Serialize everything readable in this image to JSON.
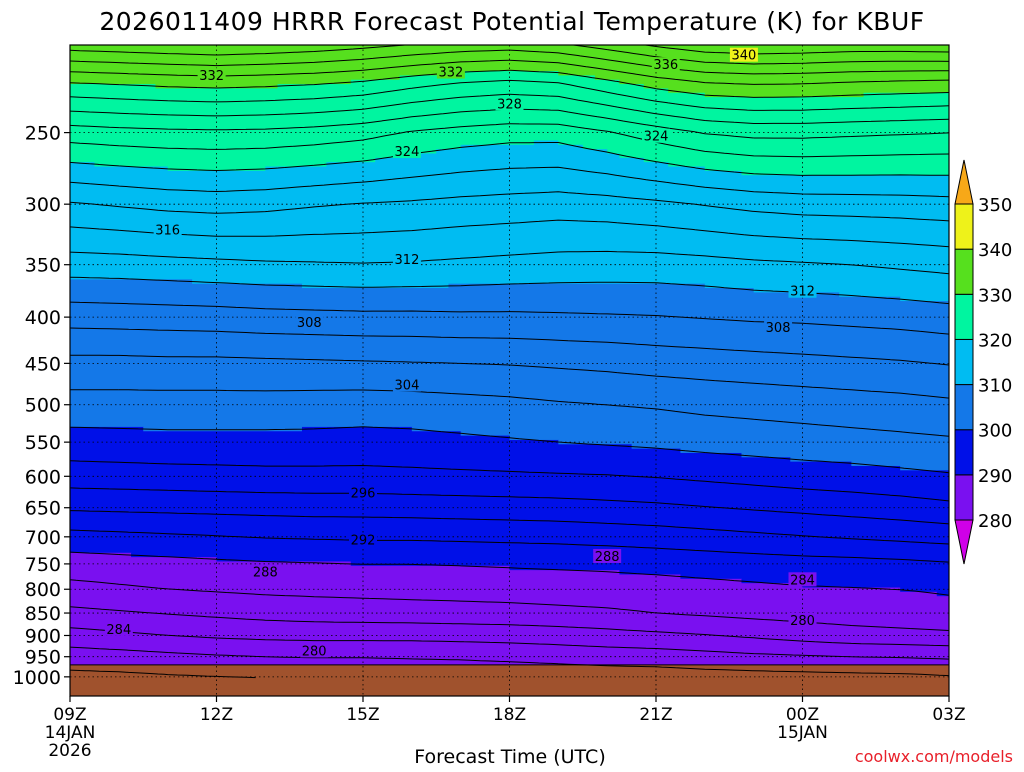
{
  "chart_data": {
    "type": "heatmap",
    "title": "2026011409 HRRR Forecast Potential Temperature (K) for KBUF",
    "xlabel": "Forecast Time (UTC)",
    "ylabel": "",
    "x_ticks": [
      {
        "hour": 0,
        "label": "09Z",
        "sub1": "14JAN",
        "sub2": "2026"
      },
      {
        "hour": 3,
        "label": "12Z",
        "sub1": "",
        "sub2": ""
      },
      {
        "hour": 6,
        "label": "15Z",
        "sub1": "",
        "sub2": ""
      },
      {
        "hour": 9,
        "label": "18Z",
        "sub1": "",
        "sub2": ""
      },
      {
        "hour": 12,
        "label": "21Z",
        "sub1": "",
        "sub2": ""
      },
      {
        "hour": 15,
        "label": "00Z",
        "sub1": "15JAN",
        "sub2": ""
      },
      {
        "hour": 18,
        "label": "03Z",
        "sub1": "",
        "sub2": ""
      }
    ],
    "xlim": [
      0,
      18
    ],
    "y_ticks": [
      250,
      300,
      350,
      400,
      450,
      500,
      550,
      600,
      650,
      700,
      750,
      800,
      850,
      900,
      950,
      1000
    ],
    "ylim": [
      1050,
      200
    ],
    "y_scale": "log-pressure",
    "grid": "dotted",
    "terrain_pressure": 970,
    "terrain_color": "#a0522d",
    "legend": {
      "position": "right",
      "levels": [
        280,
        290,
        300,
        310,
        320,
        330,
        340,
        350
      ],
      "colors": [
        "#d000e8",
        "#7a10f0",
        "#0010e8",
        "#1478e8",
        "#00bcf2",
        "#00f5a0",
        "#56e01e",
        "#eef21a",
        "#f7a818"
      ]
    },
    "contour_interval": 2,
    "contours_labeled": [
      {
        "value": 340,
        "hour": 13.8,
        "pressure": 205
      },
      {
        "value": 336,
        "hour": 12.2,
        "pressure": 210
      },
      {
        "value": 332,
        "hour": 2.9,
        "pressure": 216
      },
      {
        "value": 332,
        "hour": 7.8,
        "pressure": 214
      },
      {
        "value": 328,
        "hour": 9.0,
        "pressure": 232
      },
      {
        "value": 324,
        "hour": 6.9,
        "pressure": 262
      },
      {
        "value": 324,
        "hour": 12.0,
        "pressure": 252
      },
      {
        "value": 316,
        "hour": 2.0,
        "pressure": 320
      },
      {
        "value": 312,
        "hour": 6.9,
        "pressure": 345
      },
      {
        "value": 312,
        "hour": 15.0,
        "pressure": 374
      },
      {
        "value": 308,
        "hour": 4.9,
        "pressure": 405
      },
      {
        "value": 308,
        "hour": 14.5,
        "pressure": 410
      },
      {
        "value": 304,
        "hour": 6.9,
        "pressure": 475
      },
      {
        "value": 296,
        "hour": 6.0,
        "pressure": 625
      },
      {
        "value": 292,
        "hour": 6.0,
        "pressure": 705
      },
      {
        "value": 288,
        "hour": 4.0,
        "pressure": 765
      },
      {
        "value": 288,
        "hour": 11.0,
        "pressure": 735
      },
      {
        "value": 284,
        "hour": 1.0,
        "pressure": 885
      },
      {
        "value": 284,
        "hour": 15.0,
        "pressure": 780
      },
      {
        "value": 280,
        "hour": 5.0,
        "pressure": 935
      },
      {
        "value": 280,
        "hour": 15.0,
        "pressure": 865
      }
    ],
    "credit": "coolwx.com/models"
  }
}
